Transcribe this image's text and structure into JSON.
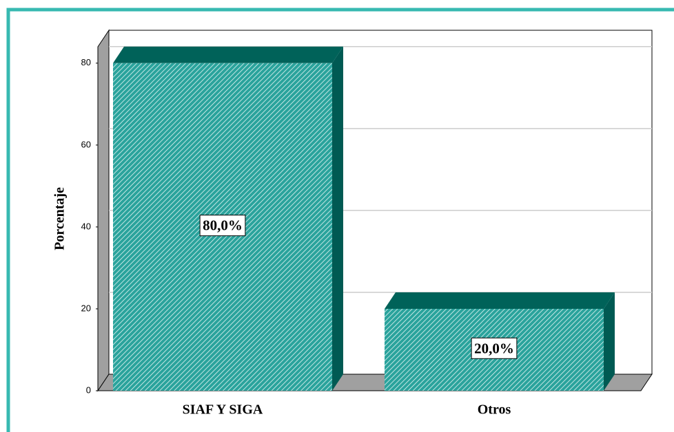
{
  "chart_data": {
    "type": "bar3d",
    "ylabel": "Porcentaje",
    "categories": [
      "SIAF Y SIGA",
      "Otros"
    ],
    "values": [
      80,
      20
    ],
    "value_labels": [
      "80,0%",
      "20,0%"
    ],
    "color": "#2aa39c",
    "ylim": [
      0,
      84
    ],
    "yticks": [
      0,
      20,
      40,
      60,
      80
    ],
    "grid": true
  }
}
